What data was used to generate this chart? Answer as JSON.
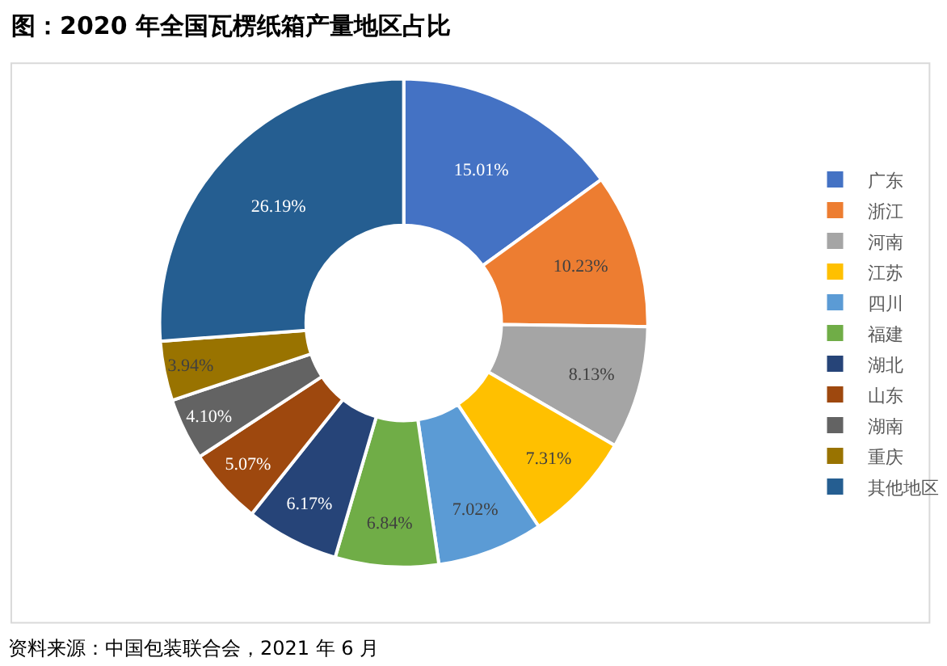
{
  "chart_data": {
    "type": "donut",
    "title": "图：2020 年全国瓦楞纸箱产量地区占比",
    "categories": [
      "广东",
      "浙江",
      "河南",
      "江苏",
      "四川",
      "福建",
      "湖北",
      "山东",
      "湖南",
      "重庆",
      "其他地区"
    ],
    "values": [
      15.01,
      10.23,
      8.13,
      7.31,
      7.02,
      6.84,
      6.17,
      5.07,
      4.1,
      3.94,
      26.19
    ],
    "value_labels": [
      "15.01%",
      "10.23%",
      "8.13%",
      "7.31%",
      "7.02%",
      "6.84%",
      "6.17%",
      "5.07%",
      "4.10%",
      "3.94%",
      "26.19%"
    ],
    "colors": [
      "#4472c4",
      "#ed7d31",
      "#a5a5a5",
      "#ffc000",
      "#5b9bd5",
      "#70ad47",
      "#264478",
      "#9e480e",
      "#636363",
      "#997300",
      "#255e91"
    ],
    "legend": "right",
    "annotations": [
      "资料来源：中国包装联合会，2021 年 6 月"
    ]
  }
}
